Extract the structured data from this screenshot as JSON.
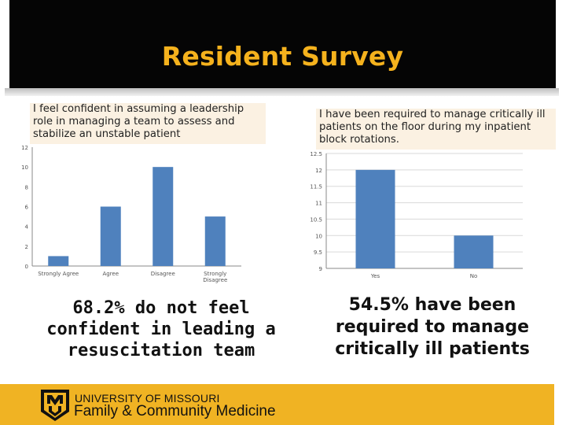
{
  "slide": {
    "title": "Resident Survey",
    "left_question": "I feel confident in assuming a leadership role in managing a team to assess and stabilize an unstable patient",
    "right_question": "I have been required to manage critically ill patients on the floor during my inpatient block rotations.",
    "left_summary": "68.2% do not feel confident in leading a resuscitation team",
    "right_summary": "54.5% have been required to manage critically ill patients"
  },
  "footer": {
    "university": "UNIVERSITY OF MISSOURI",
    "department": "Family & Community Medicine",
    "logo_icon": "mu-logo-icon",
    "color": "#f0b323"
  },
  "colors": {
    "title": "#f5b21d",
    "bar": "#4f81bd",
    "question_bg": "#fbf1e2"
  },
  "chart_data": [
    {
      "type": "bar",
      "categories": [
        [
          "Strongly Agree"
        ],
        [
          "Agree"
        ],
        [
          "Disagree"
        ],
        [
          "Strongly",
          "Disagree"
        ]
      ],
      "values": [
        1,
        6,
        10,
        5
      ],
      "ylim": [
        0,
        12
      ],
      "yticks": [
        "0",
        "2",
        "4",
        "6",
        "8",
        "10",
        "12"
      ],
      "grid": false
    },
    {
      "type": "bar",
      "categories": [
        [
          "Yes"
        ],
        [
          "No"
        ]
      ],
      "values": [
        12,
        10
      ],
      "ylim": [
        9,
        12.5
      ],
      "yticks": [
        "9",
        "9.5",
        "10",
        "10.5",
        "11",
        "11.5",
        "12",
        "12.5"
      ],
      "grid": true
    }
  ]
}
